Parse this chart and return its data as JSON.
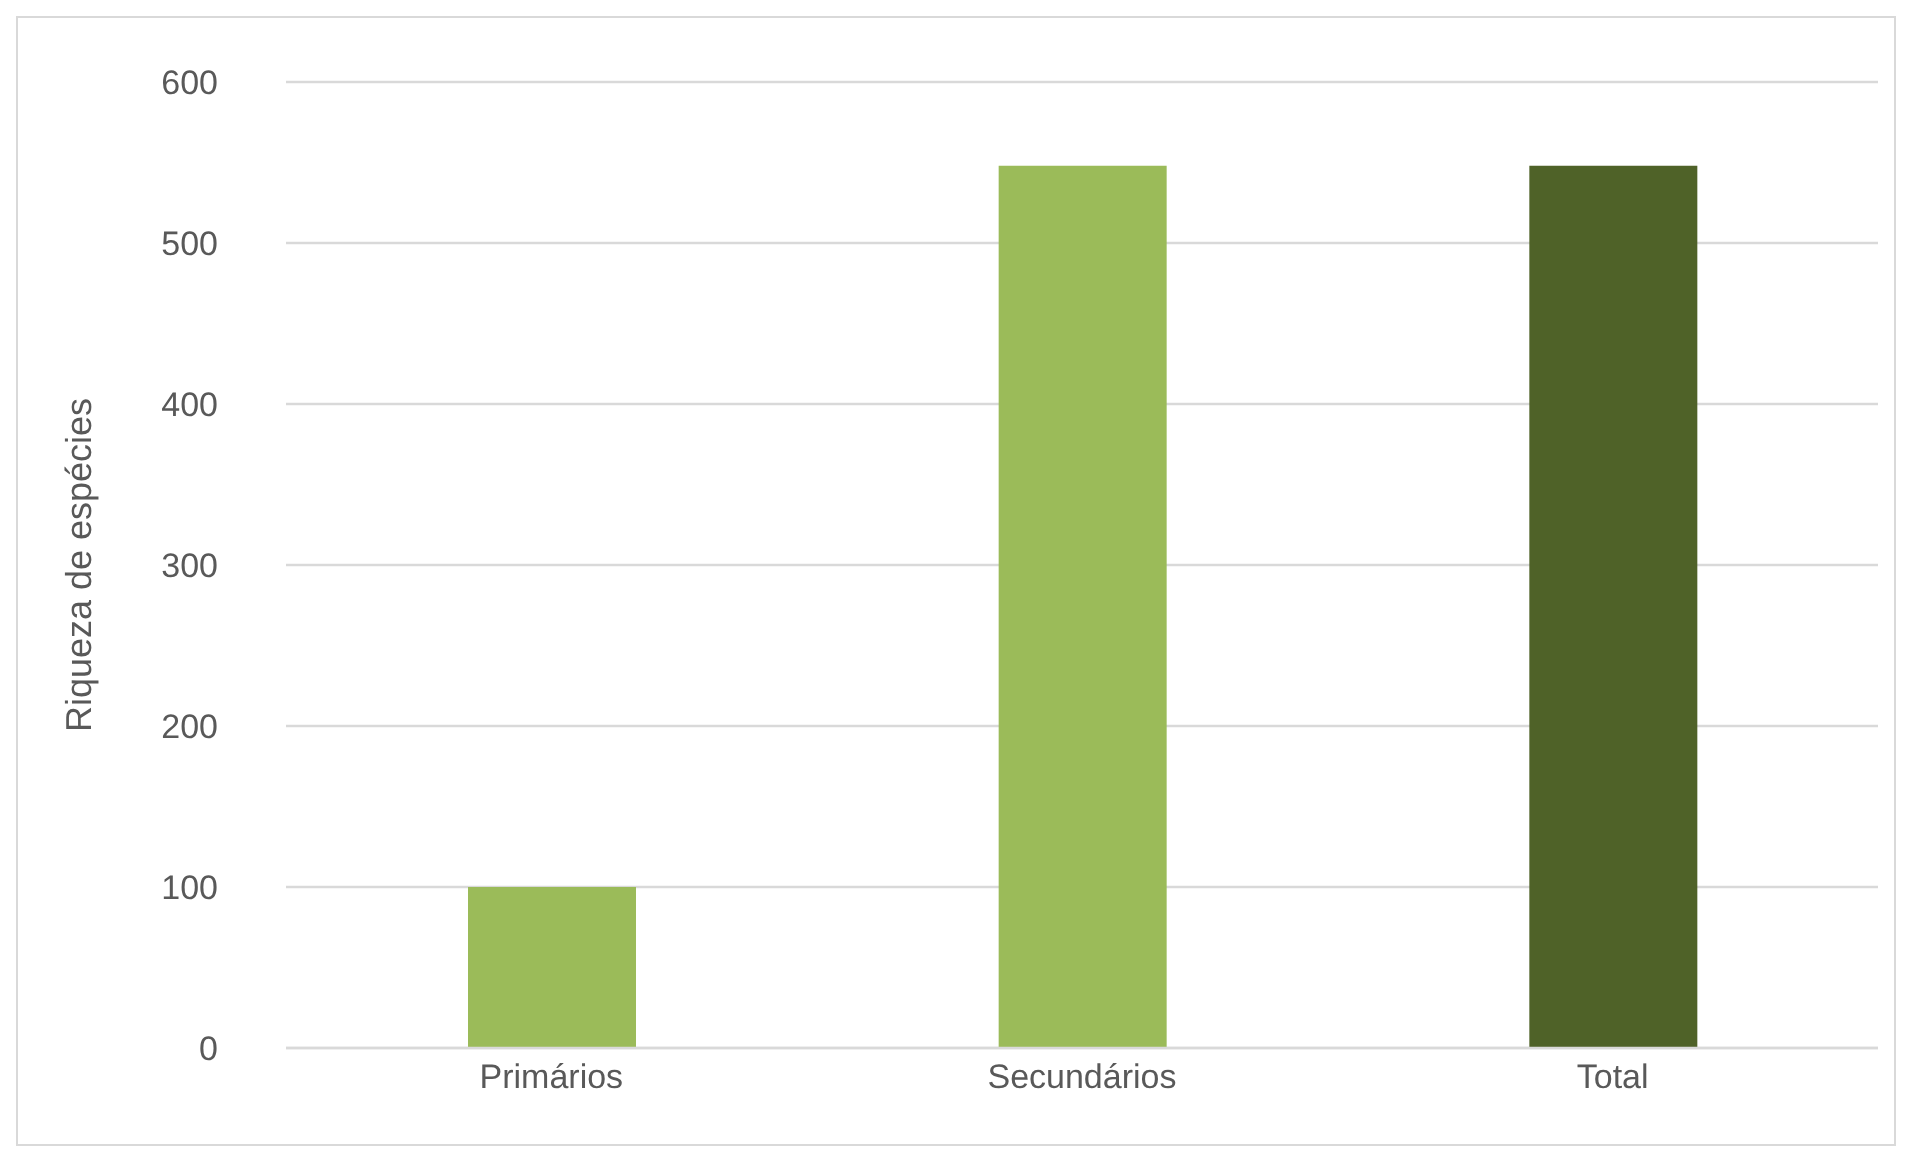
{
  "chart_data": {
    "type": "bar",
    "ylabel": "Riqueza de espécies",
    "categories": [
      "Primários",
      "Secundários",
      "Total"
    ],
    "values": [
      100,
      548,
      548
    ],
    "colors": [
      "#9bbb59",
      "#9bbb59",
      "#4f6228"
    ],
    "ylim": [
      0,
      600
    ],
    "yticks": [
      0,
      100,
      200,
      300,
      400,
      500,
      600
    ],
    "grid": "y"
  }
}
